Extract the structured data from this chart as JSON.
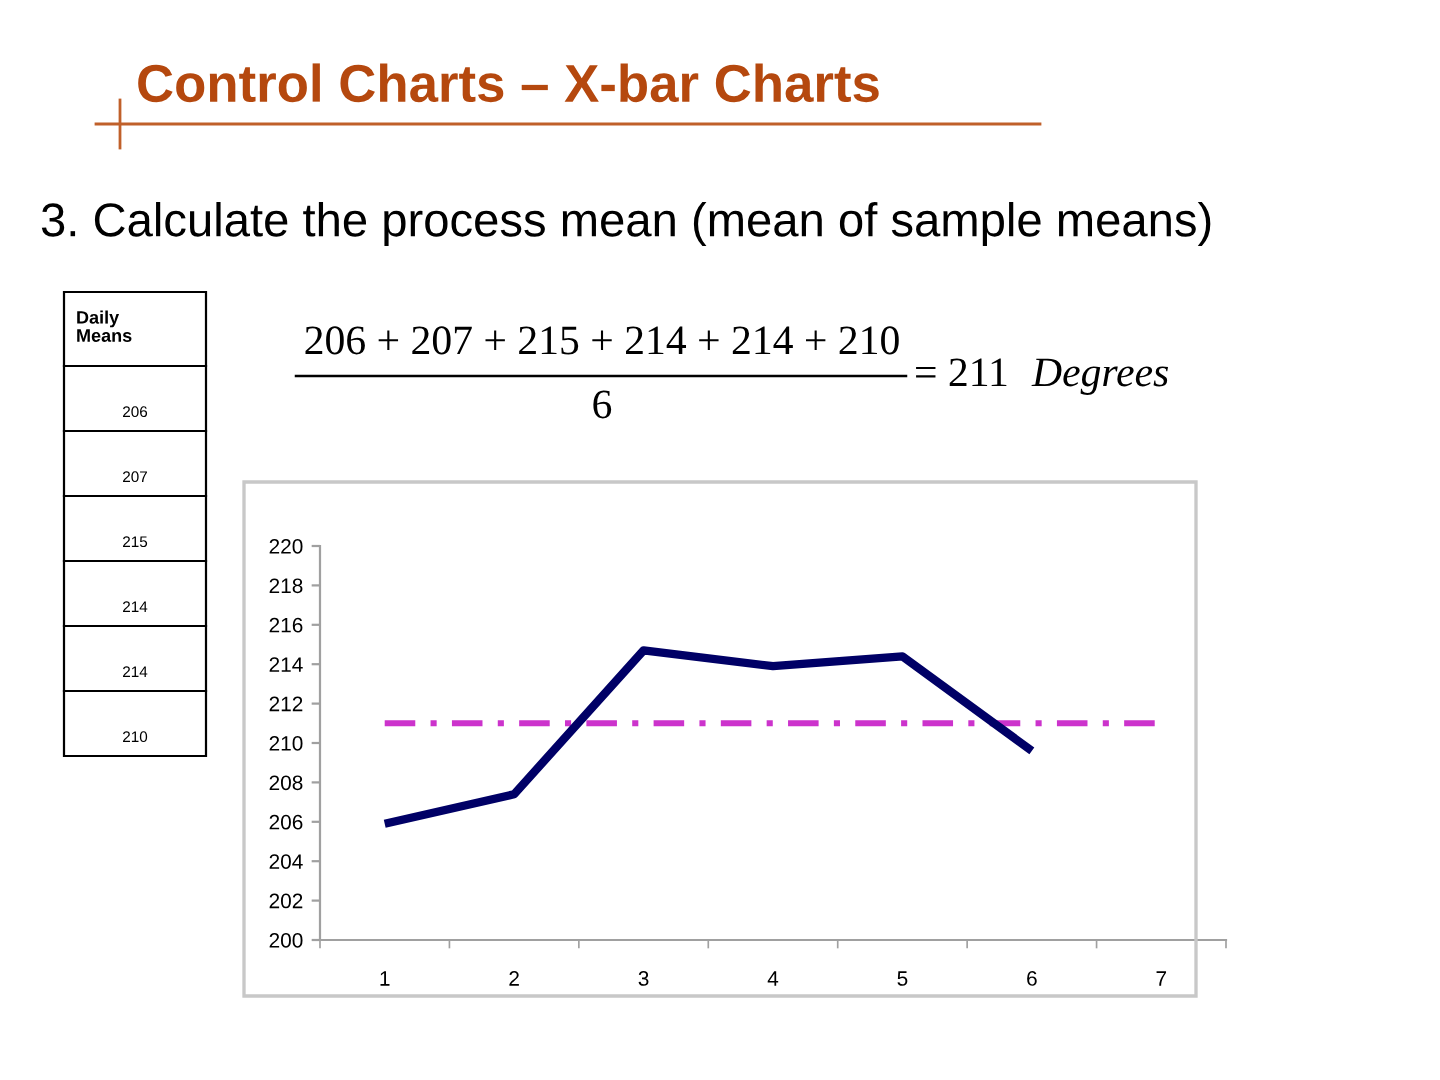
{
  "chart_data": {
    "type": "line",
    "title": "Control Charts – X-bar Charts",
    "subtitle": "3. Calculate the process mean (mean of sample means)",
    "categories": [
      "1",
      "2",
      "3",
      "4",
      "5",
      "6",
      "7"
    ],
    "series": [
      {
        "color": "#000066",
        "values": [
          205.9,
          207.4,
          214.7,
          213.9,
          214.4,
          209.6,
          null
        ]
      },
      {
        "color": "#cc33cc",
        "line_style": "dashdot",
        "values": [
          211,
          211,
          211,
          211,
          211,
          211,
          211
        ]
      }
    ],
    "ylim": [
      200,
      220
    ],
    "yticks": [
      200,
      202,
      204,
      206,
      208,
      210,
      212,
      214,
      216,
      218,
      220
    ],
    "annotations": [
      "Daily\nMeans",
      "206",
      "207",
      "215",
      "214",
      "214",
      "210",
      "206 + 207 + 215 + 214 + 214 + 210",
      "6",
      "= 211",
      "Degrees"
    ]
  }
}
